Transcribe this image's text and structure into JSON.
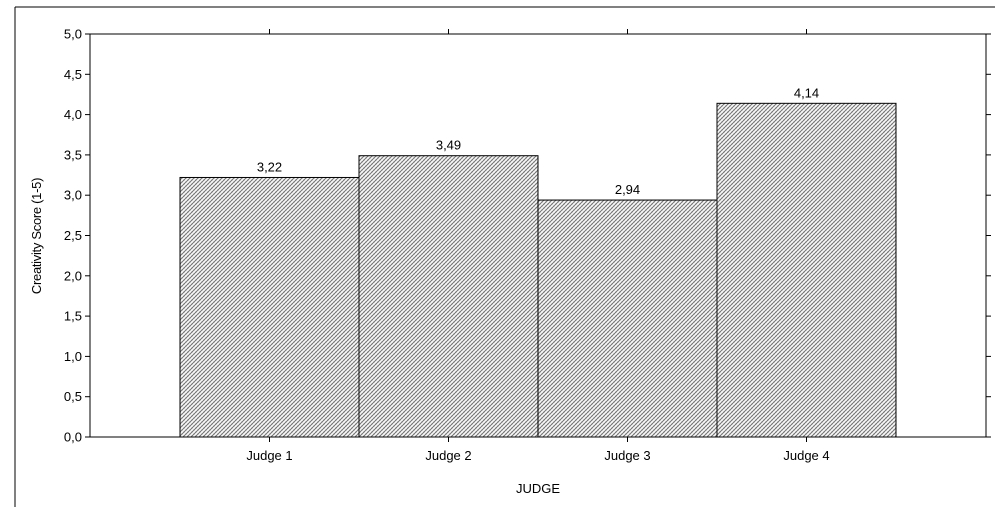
{
  "chart_data": {
    "type": "bar",
    "title": "",
    "xlabel": "JUDGE",
    "ylabel": "Creativity Score (1-5)",
    "categories": [
      "Judge 1",
      "Judge 2",
      "Judge 3",
      "Judge 4"
    ],
    "values": [
      3.22,
      3.49,
      2.94,
      4.14
    ],
    "value_labels": [
      "3,22",
      "3,49",
      "2,94",
      "4,14"
    ],
    "ylim": [
      0,
      5
    ],
    "yticks": [
      0,
      0.5,
      1,
      1.5,
      2,
      2.5,
      3,
      3.5,
      4,
      4.5,
      5
    ],
    "ytick_labels": [
      "0,0",
      "0,5",
      "1,0",
      "1,5",
      "2,0",
      "2,5",
      "3,0",
      "3,5",
      "4,0",
      "4,5",
      "5,0"
    ],
    "grid": false,
    "bar_fill": "hatched",
    "bar_color": "#cccccc"
  }
}
